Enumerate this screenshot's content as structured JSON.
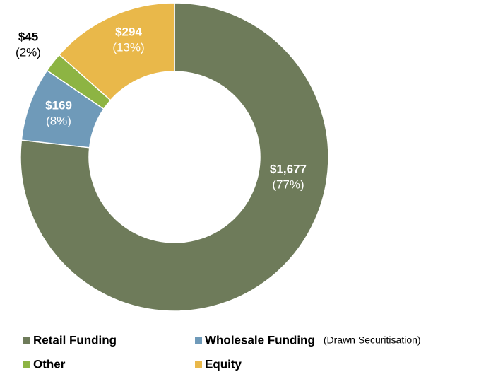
{
  "chart_data": {
    "type": "donut",
    "categories": [
      "Retail Funding",
      "Wholesale Funding",
      "Other",
      "Equity"
    ],
    "legend_notes": [
      null,
      "(Drawn Securitisation)",
      null,
      null
    ],
    "values": [
      1677,
      169,
      45,
      294
    ],
    "value_labels": [
      "$1,677",
      "$169",
      "$45",
      "$294"
    ],
    "percent_labels": [
      "(77%)",
      "(8%)",
      "(2%)",
      "(13%)"
    ],
    "colors": [
      "#6e7b5a",
      "#6f9ab9",
      "#8db443",
      "#e9b84a"
    ],
    "legend": "bottom"
  }
}
